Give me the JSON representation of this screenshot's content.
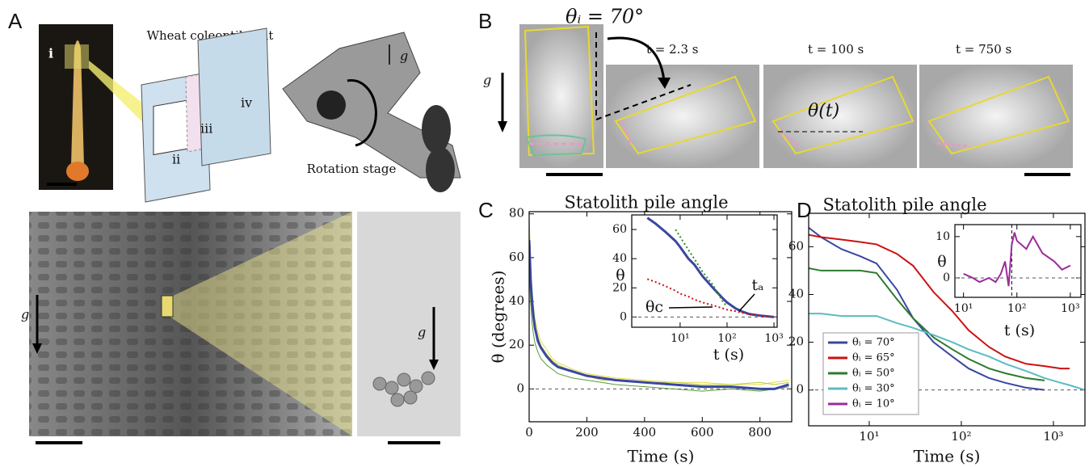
{
  "texts": {
    "panel_a": "A",
    "panel_b": "B",
    "panel_c": "C",
    "panel_d": "D",
    "sample": "Wheat coleoptile cut",
    "part_i": "i",
    "part_ii": "ii",
    "part_iii": "iii",
    "part_iv": "iv",
    "stage": "Rotation stage",
    "gravity_schematic": "g",
    "gravity_tissue": "g",
    "gravity_cell": "g",
    "gravity_b": "g",
    "initial_angle": "θᵢ = 70°",
    "time_1": "t = 2.3 s",
    "time_2": "t = 100 s",
    "time_3": "t = 750 s",
    "angle": "θ(t)"
  },
  "chart_data": [
    {
      "type": "line",
      "title": "Statolith pile angle",
      "xlabel": "Time (s)",
      "ylabel": "θ (degrees)",
      "xlim": [
        0,
        910
      ],
      "ylim": [
        -15,
        81
      ],
      "xticks": [
        0,
        200,
        400,
        600,
        800
      ],
      "yticks": [
        0,
        20,
        40,
        60,
        80
      ],
      "hline": 0,
      "x": [
        0,
        5,
        10,
        15,
        20,
        30,
        40,
        60,
        80,
        100,
        150,
        200,
        250,
        300,
        400,
        500,
        600,
        700,
        800,
        850,
        900
      ],
      "series": [
        {
          "color": "#e6dc3c",
          "width": 1,
          "values": [
            78,
            60,
            45,
            38,
            32,
            26,
            22,
            18,
            14,
            12,
            9,
            7,
            6,
            5,
            4,
            3,
            3,
            2,
            2,
            3,
            4
          ]
        },
        {
          "color": "#5a9a3a",
          "width": 1,
          "values": [
            55,
            40,
            30,
            25,
            21,
            17,
            14,
            11,
            9,
            7,
            5,
            4,
            3,
            2,
            1,
            0,
            -1,
            0,
            -1,
            0,
            1
          ]
        },
        {
          "color": "#b8cc40",
          "width": 1,
          "values": [
            70,
            55,
            42,
            35,
            29,
            24,
            20,
            16,
            13,
            11,
            8,
            6,
            4,
            4,
            3,
            3,
            2,
            2,
            3,
            2,
            3
          ]
        },
        {
          "color": "#3a47a0",
          "width": 3,
          "values": [
            68,
            50,
            40,
            33,
            28,
            22,
            19,
            15,
            12,
            10,
            8,
            6,
            5,
            4,
            3,
            2,
            1,
            1,
            0,
            0,
            2
          ]
        }
      ]
    },
    {
      "type": "line",
      "xlabel": "t (s)",
      "ylabel": "θ",
      "log_x": true,
      "xlim": [
        0.93,
        1170
      ],
      "ylim": [
        -7,
        70
      ],
      "xticks": [
        {
          "value": 10,
          "label": "10¹"
        },
        {
          "value": 100,
          "label": "10²"
        },
        {
          "value": 1000,
          "label": "10³"
        }
      ],
      "yticks": [
        0,
        20,
        40,
        60
      ],
      "hline": 0,
      "annotations": [
        "θc",
        "tₐ"
      ],
      "x": [
        2,
        3,
        5,
        8,
        10,
        15,
        20,
        30,
        50,
        80,
        100,
        150,
        200,
        300,
        500,
        1000
      ],
      "series": [
        {
          "color": "#3a47a0",
          "width": 3,
          "values": [
            68,
            64,
            58,
            52,
            48,
            40,
            36,
            28,
            20,
            13,
            10,
            6,
            4,
            2,
            1,
            0
          ]
        },
        {
          "color": "#cc1111",
          "width": 2,
          "style": "dotted",
          "values": [
            26,
            24,
            21,
            18,
            16,
            14,
            12,
            10,
            8,
            6,
            5,
            4,
            3,
            2,
            1,
            0
          ]
        },
        {
          "color": "#2e8a2e",
          "width": 2,
          "style": "dotted",
          "values": [
            null,
            null,
            null,
            60,
            55,
            46,
            40,
            31,
            22,
            11,
            7,
            null,
            null,
            null,
            null,
            null
          ]
        }
      ]
    },
    {
      "type": "line",
      "title": "Statolith pile angle",
      "xlabel": "Time (s)",
      "log_x": true,
      "xlim": [
        2.2,
        2200
      ],
      "ylim": [
        -15,
        74
      ],
      "xticks": [
        {
          "value": 10,
          "label": "10¹"
        },
        {
          "value": 100,
          "label": "10²"
        },
        {
          "value": 1000,
          "label": "10³"
        }
      ],
      "yticks": [
        0,
        20,
        40,
        60
      ],
      "hline": 0,
      "legend": "lower left",
      "x": [
        2.2,
        3,
        5,
        8,
        12,
        20,
        30,
        50,
        80,
        120,
        200,
        300,
        500,
        800,
        1200,
        1500,
        2200
      ],
      "series": [
        {
          "name": "θᵢ = 70°",
          "color": "#3a47a0",
          "width": 2,
          "values": [
            68,
            64,
            59,
            56,
            53,
            42,
            30,
            20,
            14,
            9,
            5,
            3,
            1,
            0,
            null,
            null,
            null
          ]
        },
        {
          "name": "θᵢ = 65°",
          "color": "#cc1111",
          "width": 2,
          "values": [
            65,
            64,
            63,
            62,
            61,
            57,
            52,
            41,
            33,
            25,
            18,
            14,
            11,
            10,
            9,
            9,
            null
          ]
        },
        {
          "name": "θᵢ = 50°",
          "color": "#2e7a2e",
          "width": 2,
          "values": [
            51,
            50,
            50,
            50,
            49,
            38,
            30,
            22,
            17,
            13,
            9,
            7,
            5,
            4,
            null,
            null,
            null
          ]
        },
        {
          "name": "θᵢ = 30°",
          "color": "#5bbcc0",
          "width": 2,
          "values": [
            32,
            32,
            31,
            31,
            31,
            28,
            26,
            23,
            20,
            17,
            14,
            11,
            8,
            5,
            3,
            2,
            0
          ]
        }
      ]
    },
    {
      "type": "line",
      "xlabel": "t (s)",
      "ylabel": "θ",
      "log_x": true,
      "xlim": [
        6.9,
        1580
      ],
      "ylim": [
        -4.7,
        12.9
      ],
      "xticks": [
        {
          "value": 10,
          "label": "10¹"
        },
        {
          "value": 100,
          "label": "10²"
        },
        {
          "value": 1000,
          "label": "10³"
        }
      ],
      "yticks": [
        0,
        10
      ],
      "hline": 0,
      "vline": 80,
      "x": [
        10,
        15,
        20,
        30,
        40,
        50,
        60,
        70,
        80,
        90,
        100,
        150,
        200,
        300,
        500,
        700,
        1000
      ],
      "series": [
        {
          "name": "θᵢ = 10°",
          "color": "#9b2c9b",
          "width": 2,
          "values": [
            1,
            0,
            -1,
            0,
            -1,
            1,
            4,
            -2,
            8,
            11,
            9,
            7,
            10,
            6,
            4,
            2,
            3
          ]
        }
      ]
    }
  ]
}
